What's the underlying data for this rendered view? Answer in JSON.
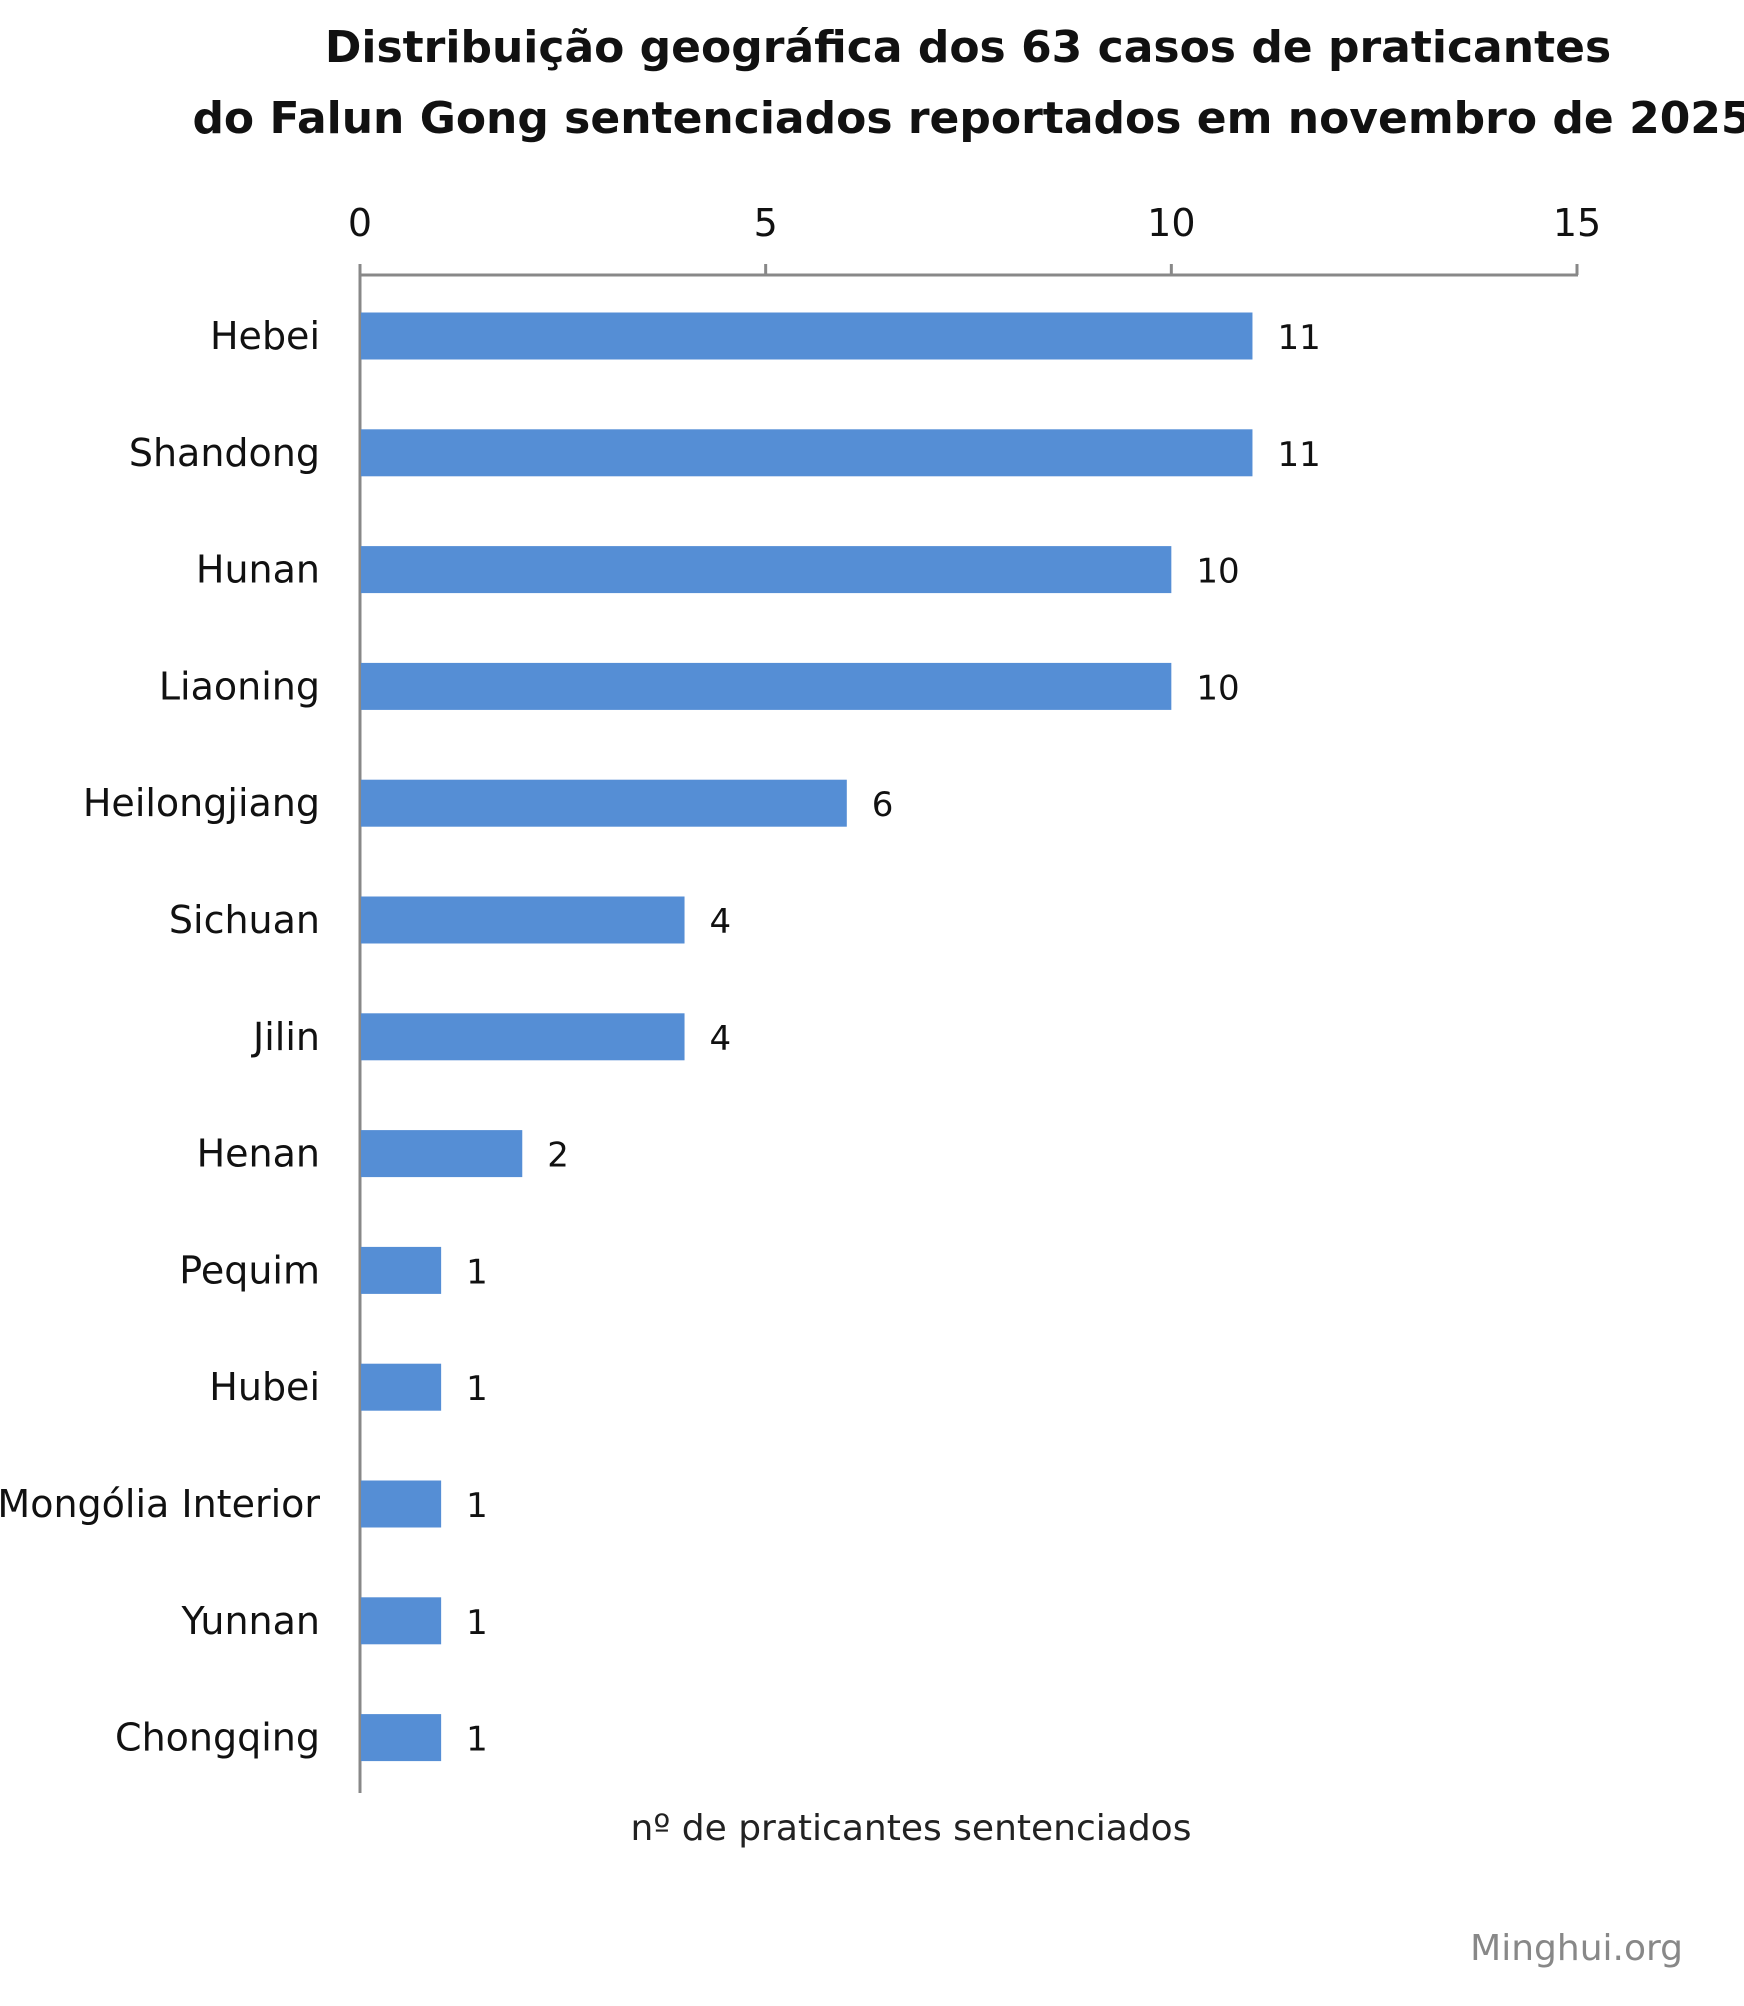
{
  "chart_data": {
    "type": "bar",
    "orientation": "horizontal",
    "title": [
      "Distribuição geográfica dos 63 casos de praticantes",
      "do Falun  Gong sentenciados reportados em novembro de 2025"
    ],
    "xlabel": "nº de praticantes sentenciados",
    "ylabel": "",
    "xlim": [
      0,
      15
    ],
    "xticks": [
      0,
      5,
      10,
      15
    ],
    "axis_position": "top",
    "grid": false,
    "categories": [
      "Hebei",
      "Shandong",
      "Hunan",
      "Liaoning",
      "Heilongjiang",
      "Sichuan",
      "Jilin",
      "Henan",
      "Pequim",
      "Hubei",
      "Mongólia Interior",
      "Yunnan",
      "Chongqing"
    ],
    "values": [
      11,
      11,
      10,
      10,
      6,
      4,
      4,
      2,
      1,
      1,
      1,
      1,
      1
    ],
    "bar_color": "#558ed5",
    "data_labels": true
  },
  "credit": "Minghui.org"
}
